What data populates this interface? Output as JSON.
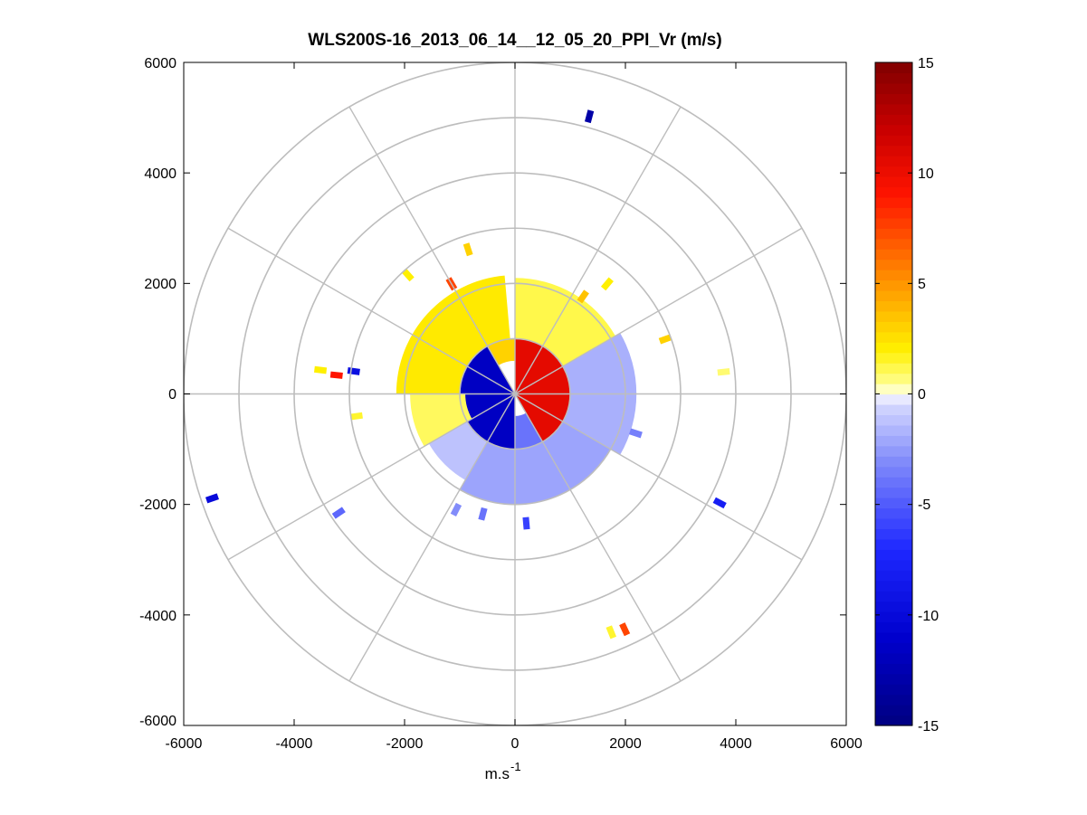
{
  "chart_data": {
    "type": "polar-ppi",
    "title": "WLS200S-16_2013_06_14__12_05_20_PPI_Vr (m/s)",
    "xlabel": "m.s",
    "xlabel_superscript": "-1",
    "ylabel": "",
    "xlim": [
      -6000,
      6000
    ],
    "ylim": [
      -6000,
      6000
    ],
    "xticks": [
      "-6000",
      "-4000",
      "-2000",
      "0",
      "2000",
      "4000",
      "6000"
    ],
    "yticks": [
      "6000",
      "4000",
      "2000",
      "0",
      "-2000",
      "-4000",
      "-6000"
    ],
    "range_rings_m": [
      1000,
      2000,
      3000,
      4000,
      5000,
      6000
    ],
    "spokes_deg": [
      0,
      30,
      60,
      90,
      120,
      150,
      180,
      210,
      240,
      270,
      300,
      330
    ],
    "colorbar": {
      "min": -15,
      "max": 15,
      "ticks": [
        "15",
        "10",
        "5",
        "0",
        "-5",
        "-10",
        "-15"
      ],
      "colormap": "white-centered blue-yellow-red"
    },
    "units": "m/s",
    "sectors": [
      {
        "az_from": 0,
        "az_to": 150,
        "r_from": 0,
        "r_to": 1050,
        "vr": 10.5
      },
      {
        "az_from": 0,
        "az_to": 60,
        "r_from": 1000,
        "r_to": 2100,
        "vr": 1.2
      },
      {
        "az_from": 60,
        "az_to": 120,
        "r_from": 1000,
        "r_to": 2200,
        "vr": -1.8
      },
      {
        "az_from": 120,
        "az_to": 210,
        "r_from": 1000,
        "r_to": 2000,
        "vr": -2.2
      },
      {
        "az_from": 150,
        "az_to": 180,
        "r_from": 400,
        "r_to": 1000,
        "vr": -4.0
      },
      {
        "az_from": 180,
        "az_to": 330,
        "r_from": 0,
        "r_to": 1000,
        "vr": -11.5
      },
      {
        "az_from": 210,
        "az_to": 240,
        "r_from": 1000,
        "r_to": 1800,
        "vr": -1.2
      },
      {
        "az_from": 240,
        "az_to": 270,
        "r_from": 900,
        "r_to": 1900,
        "vr": 1.0
      },
      {
        "az_from": 270,
        "az_to": 355,
        "r_from": 1000,
        "r_to": 2150,
        "vr": 2.2
      },
      {
        "az_from": 330,
        "az_to": 360,
        "r_from": 600,
        "r_to": 1000,
        "vr": 3.0
      }
    ],
    "gates": [
      {
        "az": 15,
        "r": 5200,
        "vr": -13.0
      },
      {
        "az": 35,
        "r": 2150,
        "vr": 3.5
      },
      {
        "az": 40,
        "r": 2600,
        "vr": 2.0
      },
      {
        "az": 70,
        "r": 2900,
        "vr": 3.0
      },
      {
        "az": 84,
        "r": 3800,
        "vr": 0.8
      },
      {
        "az": 108,
        "r": 2300,
        "vr": -3.5
      },
      {
        "az": 118,
        "r": 4200,
        "vr": -8.0
      },
      {
        "az": 155,
        "r": 4700,
        "vr": 7.5
      },
      {
        "az": 158,
        "r": 4650,
        "vr": 1.5
      },
      {
        "az": 175,
        "r": 2350,
        "vr": -6.0
      },
      {
        "az": 195,
        "r": 2250,
        "vr": -4.0
      },
      {
        "az": 207,
        "r": 2350,
        "vr": -3.0
      },
      {
        "az": 236,
        "r": 3850,
        "vr": -4.5
      },
      {
        "az": 251,
        "r": 5800,
        "vr": -10.0
      },
      {
        "az": 262,
        "r": 2900,
        "vr": 1.5
      },
      {
        "az": 276,
        "r": 3250,
        "vr": 9.0
      },
      {
        "az": 277,
        "r": 3550,
        "vr": 2.0
      },
      {
        "az": 278,
        "r": 2950,
        "vr": -9.5
      },
      {
        "az": 318,
        "r": 2900,
        "vr": 2.0
      },
      {
        "az": 330,
        "r": 2300,
        "vr": 7.5
      },
      {
        "az": 342,
        "r": 2750,
        "vr": 3.0
      }
    ]
  }
}
